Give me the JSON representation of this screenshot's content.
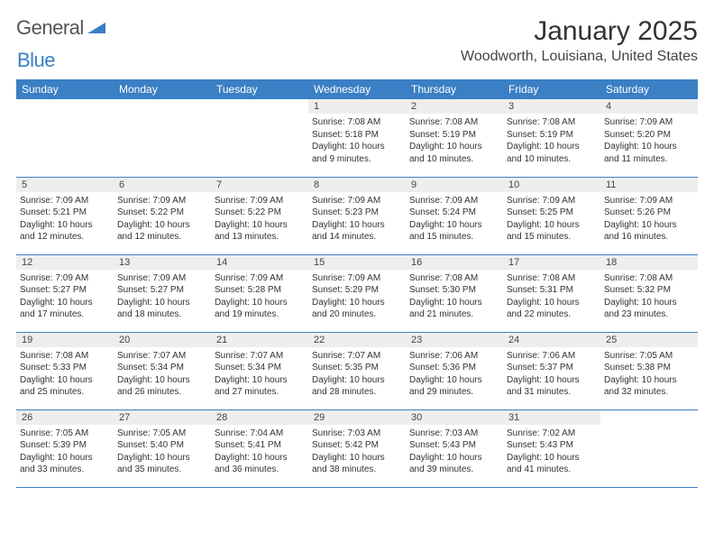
{
  "logo": {
    "word1": "General",
    "word2": "Blue"
  },
  "header": {
    "title": "January 2025",
    "location": "Woodworth, Louisiana, United States"
  },
  "colors": {
    "accent": "#3b7fc4",
    "row_bg": "#eeeeee",
    "text": "#333333"
  },
  "weekdays": [
    "Sunday",
    "Monday",
    "Tuesday",
    "Wednesday",
    "Thursday",
    "Friday",
    "Saturday"
  ],
  "weeks": [
    [
      {
        "n": "",
        "sr": "",
        "ss": "",
        "dl": ""
      },
      {
        "n": "",
        "sr": "",
        "ss": "",
        "dl": ""
      },
      {
        "n": "",
        "sr": "",
        "ss": "",
        "dl": ""
      },
      {
        "n": "1",
        "sr": "Sunrise: 7:08 AM",
        "ss": "Sunset: 5:18 PM",
        "dl": "Daylight: 10 hours and 9 minutes."
      },
      {
        "n": "2",
        "sr": "Sunrise: 7:08 AM",
        "ss": "Sunset: 5:19 PM",
        "dl": "Daylight: 10 hours and 10 minutes."
      },
      {
        "n": "3",
        "sr": "Sunrise: 7:08 AM",
        "ss": "Sunset: 5:19 PM",
        "dl": "Daylight: 10 hours and 10 minutes."
      },
      {
        "n": "4",
        "sr": "Sunrise: 7:09 AM",
        "ss": "Sunset: 5:20 PM",
        "dl": "Daylight: 10 hours and 11 minutes."
      }
    ],
    [
      {
        "n": "5",
        "sr": "Sunrise: 7:09 AM",
        "ss": "Sunset: 5:21 PM",
        "dl": "Daylight: 10 hours and 12 minutes."
      },
      {
        "n": "6",
        "sr": "Sunrise: 7:09 AM",
        "ss": "Sunset: 5:22 PM",
        "dl": "Daylight: 10 hours and 12 minutes."
      },
      {
        "n": "7",
        "sr": "Sunrise: 7:09 AM",
        "ss": "Sunset: 5:22 PM",
        "dl": "Daylight: 10 hours and 13 minutes."
      },
      {
        "n": "8",
        "sr": "Sunrise: 7:09 AM",
        "ss": "Sunset: 5:23 PM",
        "dl": "Daylight: 10 hours and 14 minutes."
      },
      {
        "n": "9",
        "sr": "Sunrise: 7:09 AM",
        "ss": "Sunset: 5:24 PM",
        "dl": "Daylight: 10 hours and 15 minutes."
      },
      {
        "n": "10",
        "sr": "Sunrise: 7:09 AM",
        "ss": "Sunset: 5:25 PM",
        "dl": "Daylight: 10 hours and 15 minutes."
      },
      {
        "n": "11",
        "sr": "Sunrise: 7:09 AM",
        "ss": "Sunset: 5:26 PM",
        "dl": "Daylight: 10 hours and 16 minutes."
      }
    ],
    [
      {
        "n": "12",
        "sr": "Sunrise: 7:09 AM",
        "ss": "Sunset: 5:27 PM",
        "dl": "Daylight: 10 hours and 17 minutes."
      },
      {
        "n": "13",
        "sr": "Sunrise: 7:09 AM",
        "ss": "Sunset: 5:27 PM",
        "dl": "Daylight: 10 hours and 18 minutes."
      },
      {
        "n": "14",
        "sr": "Sunrise: 7:09 AM",
        "ss": "Sunset: 5:28 PM",
        "dl": "Daylight: 10 hours and 19 minutes."
      },
      {
        "n": "15",
        "sr": "Sunrise: 7:09 AM",
        "ss": "Sunset: 5:29 PM",
        "dl": "Daylight: 10 hours and 20 minutes."
      },
      {
        "n": "16",
        "sr": "Sunrise: 7:08 AM",
        "ss": "Sunset: 5:30 PM",
        "dl": "Daylight: 10 hours and 21 minutes."
      },
      {
        "n": "17",
        "sr": "Sunrise: 7:08 AM",
        "ss": "Sunset: 5:31 PM",
        "dl": "Daylight: 10 hours and 22 minutes."
      },
      {
        "n": "18",
        "sr": "Sunrise: 7:08 AM",
        "ss": "Sunset: 5:32 PM",
        "dl": "Daylight: 10 hours and 23 minutes."
      }
    ],
    [
      {
        "n": "19",
        "sr": "Sunrise: 7:08 AM",
        "ss": "Sunset: 5:33 PM",
        "dl": "Daylight: 10 hours and 25 minutes."
      },
      {
        "n": "20",
        "sr": "Sunrise: 7:07 AM",
        "ss": "Sunset: 5:34 PM",
        "dl": "Daylight: 10 hours and 26 minutes."
      },
      {
        "n": "21",
        "sr": "Sunrise: 7:07 AM",
        "ss": "Sunset: 5:34 PM",
        "dl": "Daylight: 10 hours and 27 minutes."
      },
      {
        "n": "22",
        "sr": "Sunrise: 7:07 AM",
        "ss": "Sunset: 5:35 PM",
        "dl": "Daylight: 10 hours and 28 minutes."
      },
      {
        "n": "23",
        "sr": "Sunrise: 7:06 AM",
        "ss": "Sunset: 5:36 PM",
        "dl": "Daylight: 10 hours and 29 minutes."
      },
      {
        "n": "24",
        "sr": "Sunrise: 7:06 AM",
        "ss": "Sunset: 5:37 PM",
        "dl": "Daylight: 10 hours and 31 minutes."
      },
      {
        "n": "25",
        "sr": "Sunrise: 7:05 AM",
        "ss": "Sunset: 5:38 PM",
        "dl": "Daylight: 10 hours and 32 minutes."
      }
    ],
    [
      {
        "n": "26",
        "sr": "Sunrise: 7:05 AM",
        "ss": "Sunset: 5:39 PM",
        "dl": "Daylight: 10 hours and 33 minutes."
      },
      {
        "n": "27",
        "sr": "Sunrise: 7:05 AM",
        "ss": "Sunset: 5:40 PM",
        "dl": "Daylight: 10 hours and 35 minutes."
      },
      {
        "n": "28",
        "sr": "Sunrise: 7:04 AM",
        "ss": "Sunset: 5:41 PM",
        "dl": "Daylight: 10 hours and 36 minutes."
      },
      {
        "n": "29",
        "sr": "Sunrise: 7:03 AM",
        "ss": "Sunset: 5:42 PM",
        "dl": "Daylight: 10 hours and 38 minutes."
      },
      {
        "n": "30",
        "sr": "Sunrise: 7:03 AM",
        "ss": "Sunset: 5:43 PM",
        "dl": "Daylight: 10 hours and 39 minutes."
      },
      {
        "n": "31",
        "sr": "Sunrise: 7:02 AM",
        "ss": "Sunset: 5:43 PM",
        "dl": "Daylight: 10 hours and 41 minutes."
      },
      {
        "n": "",
        "sr": "",
        "ss": "",
        "dl": ""
      }
    ]
  ]
}
